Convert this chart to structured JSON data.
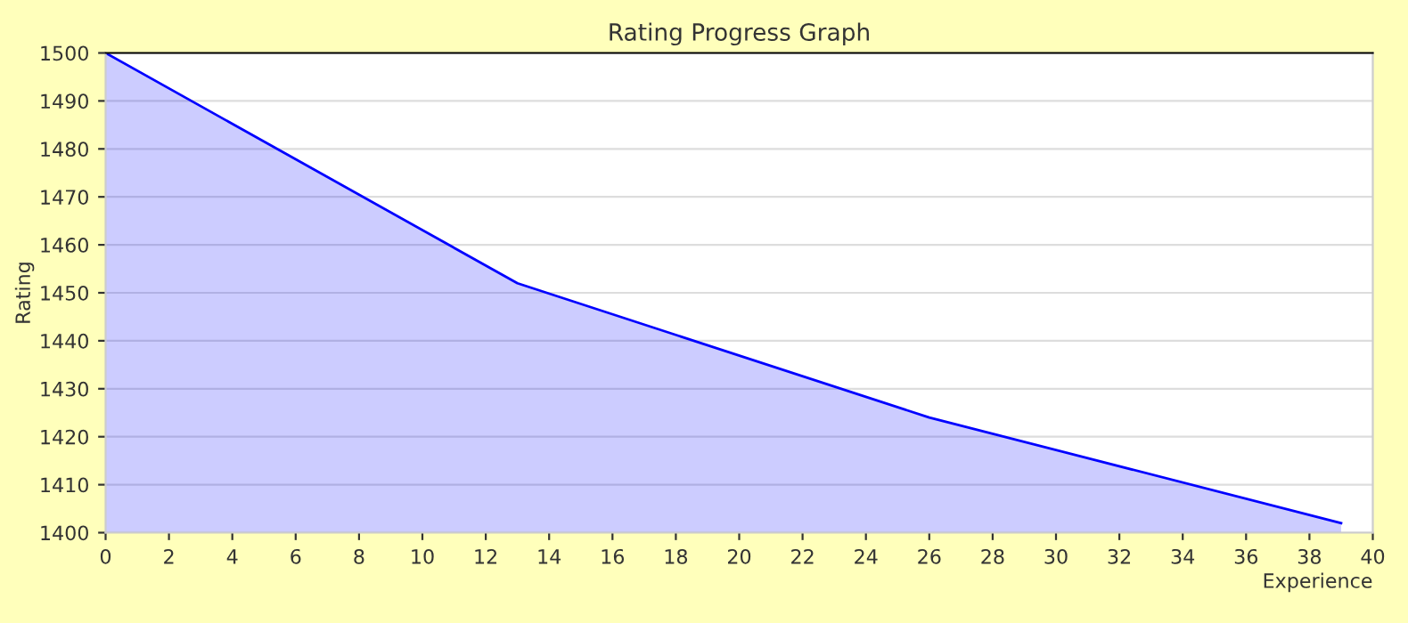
{
  "chart_data": {
    "type": "area",
    "title": "Rating Progress Graph",
    "xlabel": "Experience",
    "ylabel": "Rating",
    "x": [
      0,
      13,
      26,
      39
    ],
    "series": [
      {
        "color": "#0000ff",
        "values": [
          1500,
          1452,
          1424,
          1402
        ]
      }
    ],
    "xlim": [
      0,
      40
    ],
    "xticks": [
      0,
      2,
      4,
      6,
      8,
      10,
      12,
      14,
      16,
      18,
      20,
      22,
      24,
      26,
      28,
      30,
      32,
      34,
      36,
      38,
      40
    ],
    "ylim": [
      1400,
      1500
    ],
    "yticks": [
      1400,
      1410,
      1420,
      1430,
      1440,
      1450,
      1460,
      1470,
      1480,
      1490,
      1500
    ],
    "grid": "y",
    "legend": false,
    "marker": "none"
  }
}
